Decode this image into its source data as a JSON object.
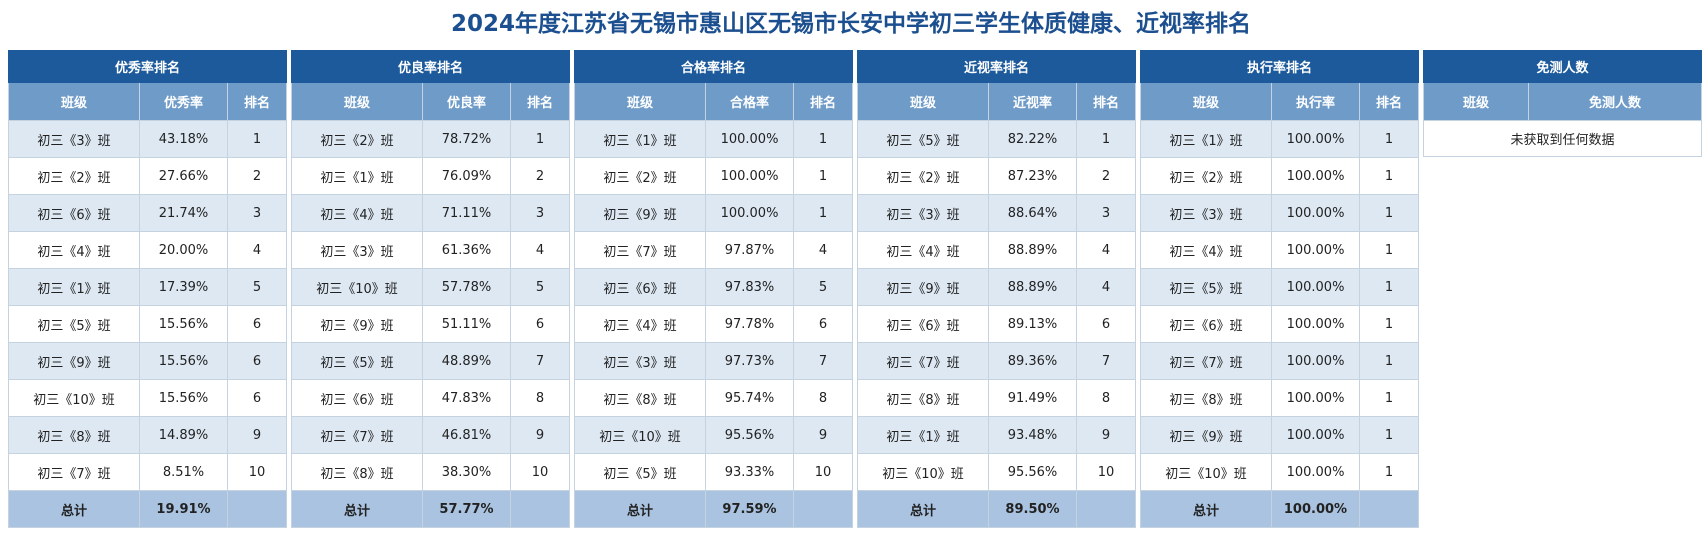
{
  "title": "2024年度江苏省无锡市惠山区无锡市长安中学初三学生体质健康、近视率排名",
  "excellent": {
    "caption": "优秀率排名",
    "headers": [
      "班级",
      "优秀率",
      "排名"
    ],
    "rows": [
      [
        "初三《3》班",
        "43.18%",
        "1"
      ],
      [
        "初三《2》班",
        "27.66%",
        "2"
      ],
      [
        "初三《6》班",
        "21.74%",
        "3"
      ],
      [
        "初三《4》班",
        "20.00%",
        "4"
      ],
      [
        "初三《1》班",
        "17.39%",
        "5"
      ],
      [
        "初三《5》班",
        "15.56%",
        "6"
      ],
      [
        "初三《9》班",
        "15.56%",
        "6"
      ],
      [
        "初三《10》班",
        "15.56%",
        "6"
      ],
      [
        "初三《8》班",
        "14.89%",
        "9"
      ],
      [
        "初三《7》班",
        "8.51%",
        "10"
      ]
    ],
    "total_label": "总计",
    "total_value": "19.91%"
  },
  "good": {
    "caption": "优良率排名",
    "headers": [
      "班级",
      "优良率",
      "排名"
    ],
    "rows": [
      [
        "初三《2》班",
        "78.72%",
        "1"
      ],
      [
        "初三《1》班",
        "76.09%",
        "2"
      ],
      [
        "初三《4》班",
        "71.11%",
        "3"
      ],
      [
        "初三《3》班",
        "61.36%",
        "4"
      ],
      [
        "初三《10》班",
        "57.78%",
        "5"
      ],
      [
        "初三《9》班",
        "51.11%",
        "6"
      ],
      [
        "初三《5》班",
        "48.89%",
        "7"
      ],
      [
        "初三《6》班",
        "47.83%",
        "8"
      ],
      [
        "初三《7》班",
        "46.81%",
        "9"
      ],
      [
        "初三《8》班",
        "38.30%",
        "10"
      ]
    ],
    "total_label": "总计",
    "total_value": "57.77%"
  },
  "pass": {
    "caption": "合格率排名",
    "headers": [
      "班级",
      "合格率",
      "排名"
    ],
    "rows": [
      [
        "初三《1》班",
        "100.00%",
        "1"
      ],
      [
        "初三《2》班",
        "100.00%",
        "1"
      ],
      [
        "初三《9》班",
        "100.00%",
        "1"
      ],
      [
        "初三《7》班",
        "97.87%",
        "4"
      ],
      [
        "初三《6》班",
        "97.83%",
        "5"
      ],
      [
        "初三《4》班",
        "97.78%",
        "6"
      ],
      [
        "初三《3》班",
        "97.73%",
        "7"
      ],
      [
        "初三《8》班",
        "95.74%",
        "8"
      ],
      [
        "初三《10》班",
        "95.56%",
        "9"
      ],
      [
        "初三《5》班",
        "93.33%",
        "10"
      ]
    ],
    "total_label": "总计",
    "total_value": "97.59%"
  },
  "myopia": {
    "caption": "近视率排名",
    "headers": [
      "班级",
      "近视率",
      "排名"
    ],
    "rows": [
      [
        "初三《5》班",
        "82.22%",
        "1"
      ],
      [
        "初三《2》班",
        "87.23%",
        "2"
      ],
      [
        "初三《3》班",
        "88.64%",
        "3"
      ],
      [
        "初三《4》班",
        "88.89%",
        "4"
      ],
      [
        "初三《9》班",
        "88.89%",
        "4"
      ],
      [
        "初三《6》班",
        "89.13%",
        "6"
      ],
      [
        "初三《7》班",
        "89.36%",
        "7"
      ],
      [
        "初三《8》班",
        "91.49%",
        "8"
      ],
      [
        "初三《1》班",
        "93.48%",
        "9"
      ],
      [
        "初三《10》班",
        "95.56%",
        "10"
      ]
    ],
    "total_label": "总计",
    "total_value": "89.50%"
  },
  "execution": {
    "caption": "执行率排名",
    "headers": [
      "班级",
      "执行率",
      "排名"
    ],
    "rows": [
      [
        "初三《1》班",
        "100.00%",
        "1"
      ],
      [
        "初三《2》班",
        "100.00%",
        "1"
      ],
      [
        "初三《3》班",
        "100.00%",
        "1"
      ],
      [
        "初三《4》班",
        "100.00%",
        "1"
      ],
      [
        "初三《5》班",
        "100.00%",
        "1"
      ],
      [
        "初三《6》班",
        "100.00%",
        "1"
      ],
      [
        "初三《7》班",
        "100.00%",
        "1"
      ],
      [
        "初三《8》班",
        "100.00%",
        "1"
      ],
      [
        "初三《9》班",
        "100.00%",
        "1"
      ],
      [
        "初三《10》班",
        "100.00%",
        "1"
      ]
    ],
    "total_label": "总计",
    "total_value": "100.00%"
  },
  "exempt": {
    "caption": "免测人数",
    "headers": [
      "班级",
      "免测人数"
    ],
    "empty_message": "未获取到任何数据"
  }
}
